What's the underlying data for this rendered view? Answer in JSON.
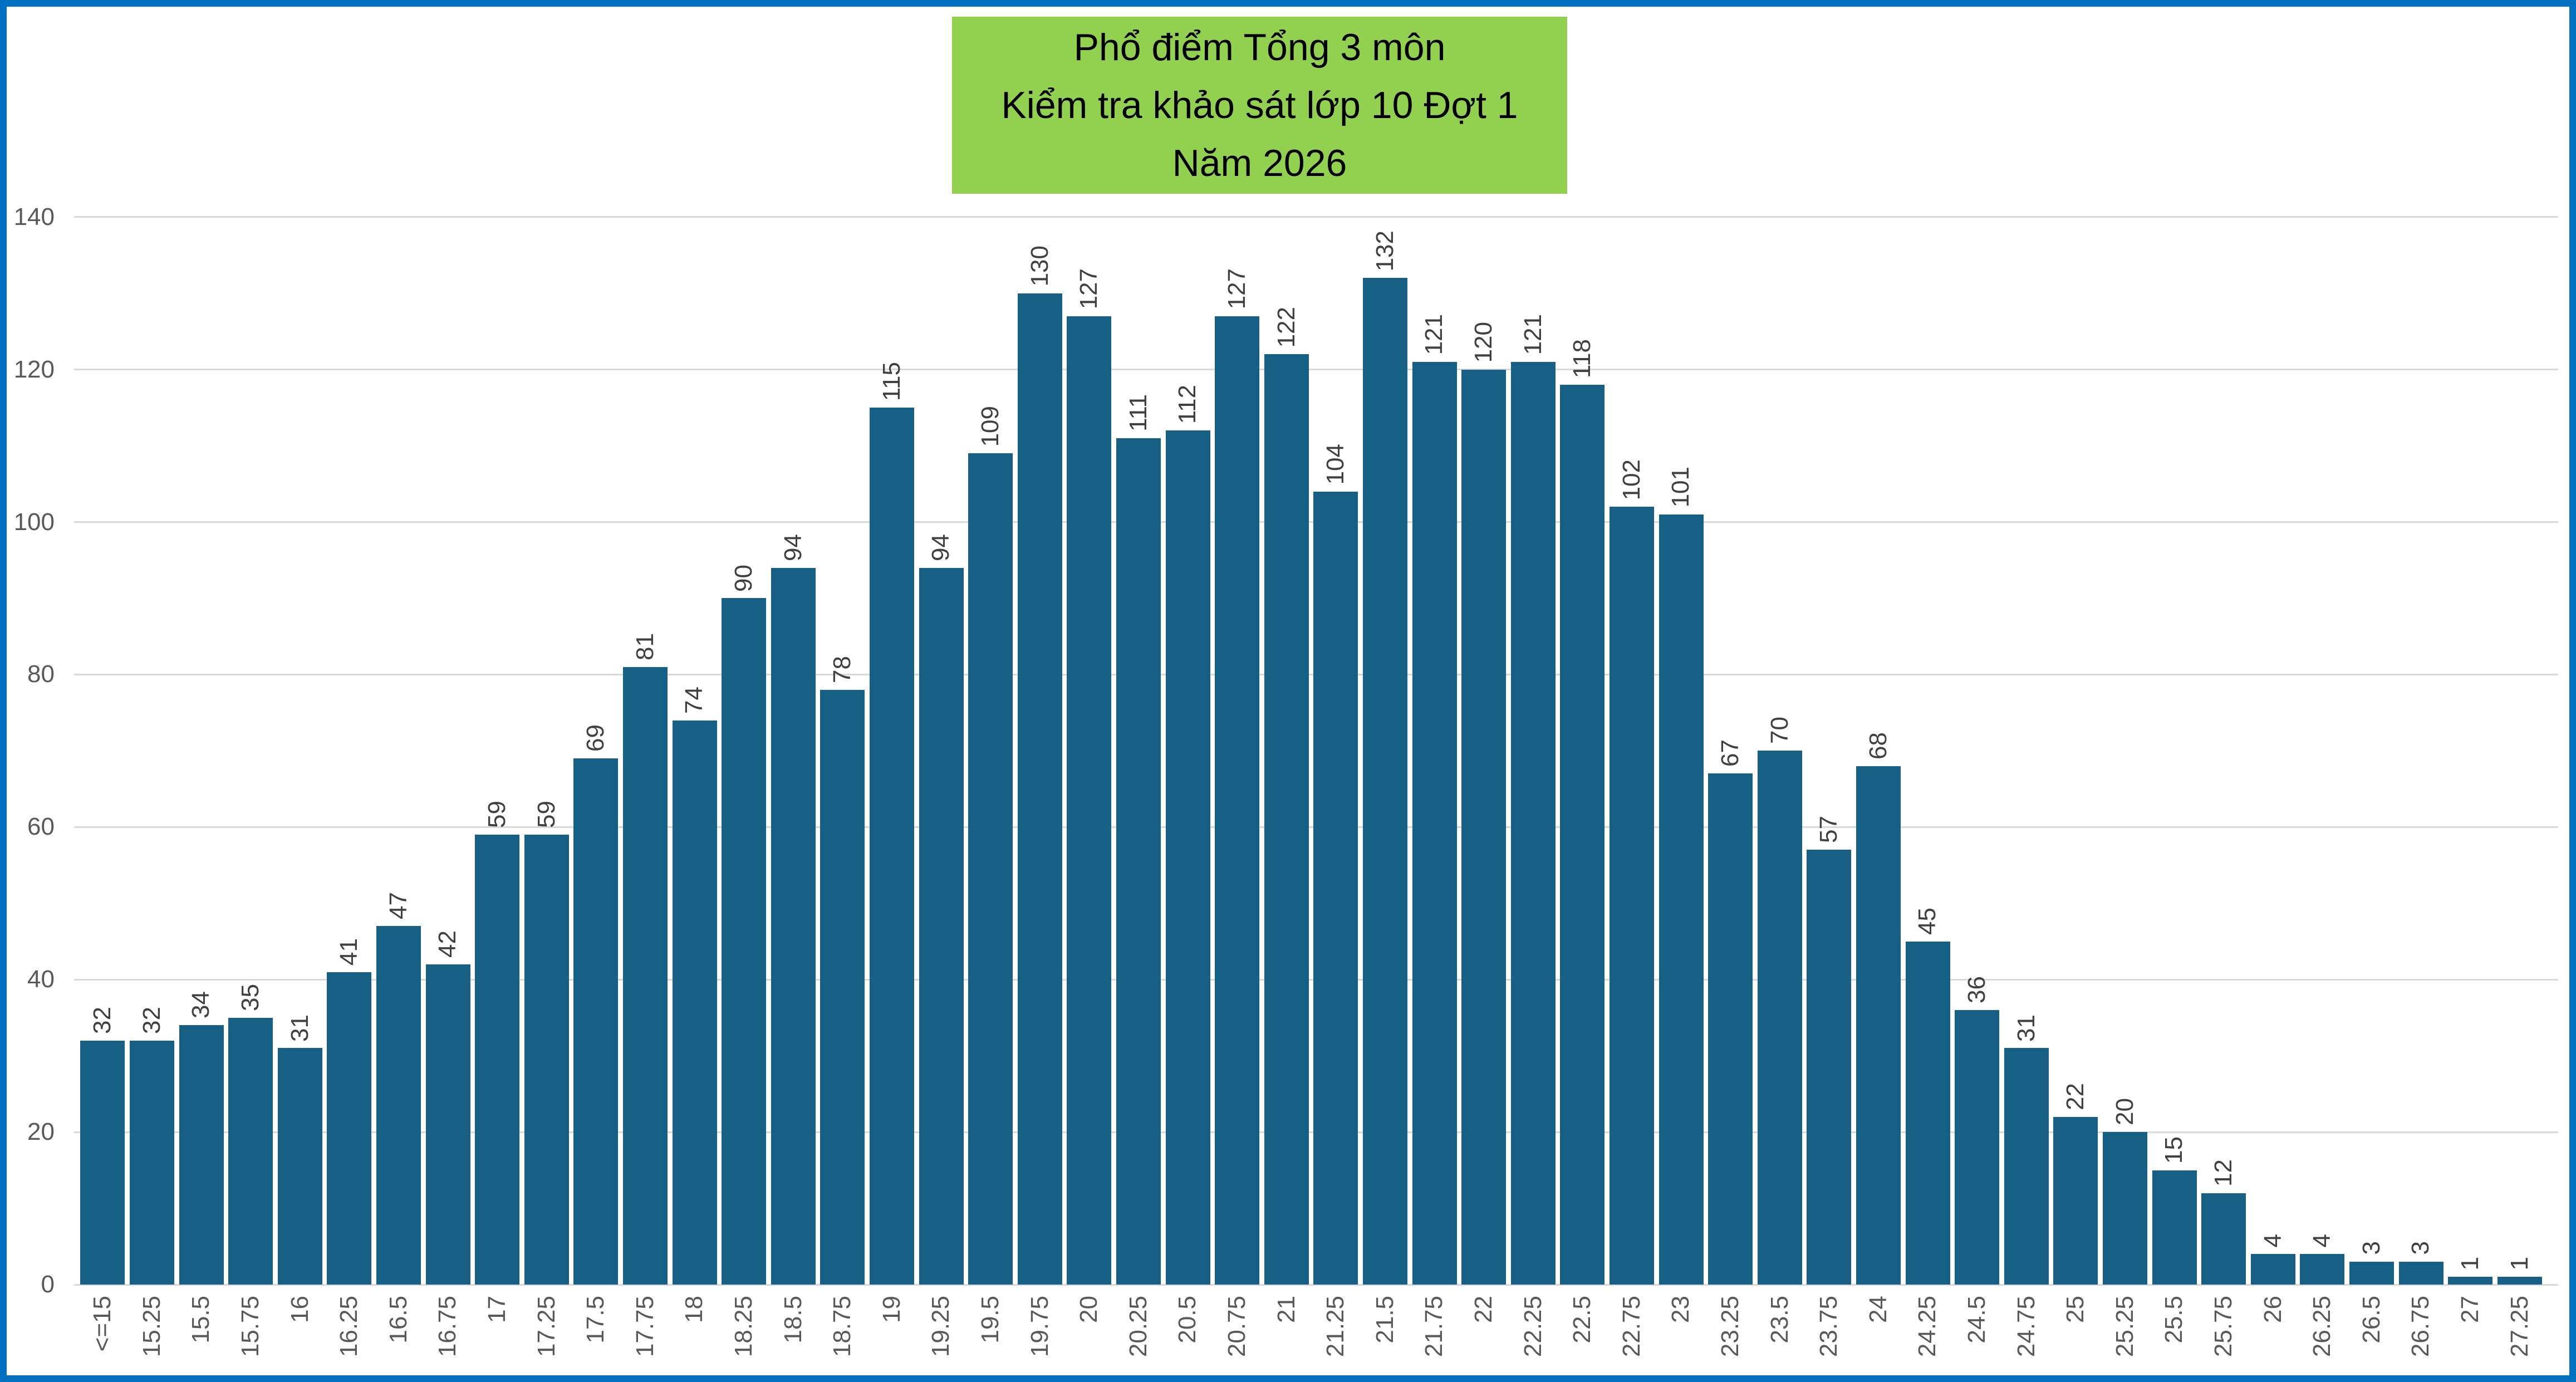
{
  "frame": {
    "border_color": "#0070C0"
  },
  "title": {
    "bg_color": "#92D050",
    "text_color": "#000000",
    "lines": [
      "Phổ điểm Tổng 3 môn",
      "Kiểm tra khảo sát lớp 10 Đợt 1",
      "Năm 2026"
    ]
  },
  "chart_data": {
    "type": "bar",
    "title": "Phổ điểm Tổng 3 môn Kiểm tra khảo sát lớp 10 Đợt 1 Năm 2026",
    "xlabel": "",
    "ylabel": "",
    "ylim": [
      0,
      140
    ],
    "yticks": [
      0,
      20,
      40,
      60,
      80,
      100,
      120,
      140
    ],
    "grid": true,
    "legend": "none",
    "bar_color": "#165F85",
    "gridline_color": "#D9D9D9",
    "axis_label_color": "#595959",
    "bar_label_color": "#404040",
    "categories": [
      "<=15",
      "15.25",
      "15.5",
      "15.75",
      "16",
      "16.25",
      "16.5",
      "16.75",
      "17",
      "17.25",
      "17.5",
      "17.75",
      "18",
      "18.25",
      "18.5",
      "18.75",
      "19",
      "19.25",
      "19.5",
      "19.75",
      "20",
      "20.25",
      "20.5",
      "20.75",
      "21",
      "21.25",
      "21.5",
      "21.75",
      "22",
      "22.25",
      "22.5",
      "22.75",
      "23",
      "23.25",
      "23.5",
      "23.75",
      "24",
      "24.25",
      "24.5",
      "24.75",
      "25",
      "25.25",
      "25.5",
      "25.75",
      "26",
      "26.25",
      "26.5",
      "26.75",
      "27",
      "27.25"
    ],
    "values": [
      32,
      32,
      34,
      35,
      31,
      41,
      47,
      42,
      59,
      59,
      69,
      81,
      74,
      90,
      94,
      78,
      115,
      94,
      109,
      130,
      127,
      111,
      112,
      127,
      122,
      104,
      132,
      121,
      120,
      121,
      118,
      102,
      101,
      67,
      70,
      57,
      68,
      45,
      36,
      31,
      22,
      20,
      15,
      12,
      4,
      4,
      3,
      3,
      1,
      1
    ]
  }
}
